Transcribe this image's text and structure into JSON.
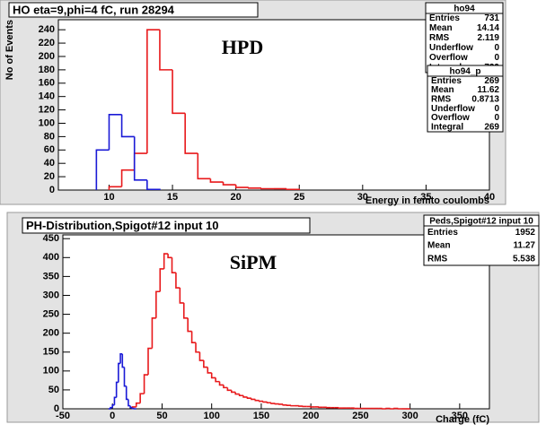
{
  "chart_data": [
    {
      "type": "histogram",
      "title": "HO eta=9,phi=4 fC, run 28294",
      "annotation": "HPD",
      "x_label": "Energy in femto coulombs",
      "y_label": "No of Events",
      "xlim": [
        6,
        40
      ],
      "ylim": [
        0,
        255
      ],
      "xticks": [
        10,
        15,
        20,
        25,
        30,
        35,
        40
      ],
      "yticks": [
        0,
        20,
        40,
        60,
        80,
        100,
        120,
        140,
        160,
        180,
        200,
        220,
        240
      ],
      "series": [
        {
          "color": "#e8191b",
          "bins": [
            10,
            11,
            12,
            13,
            14,
            15,
            16,
            17,
            18,
            19,
            20,
            21,
            22,
            23,
            24,
            25
          ],
          "values": [
            5,
            30,
            55,
            240,
            180,
            115,
            55,
            17,
            12,
            8,
            4,
            3,
            2,
            2,
            1
          ]
        },
        {
          "color": "#1a1ad6",
          "bins": [
            9,
            10,
            11,
            12,
            13,
            14
          ],
          "values": [
            60,
            113,
            80,
            15,
            1
          ]
        }
      ],
      "stats": [
        {
          "title": "ho94",
          "rows": [
            {
              "label": "Entries",
              "value": 731
            },
            {
              "label": "Mean",
              "value": 14.14
            },
            {
              "label": "RMS",
              "value": 2.119
            },
            {
              "label": "Underflow",
              "value": 0
            },
            {
              "label": "Overflow",
              "value": 0
            },
            {
              "label": "Integral",
              "value": 729
            }
          ]
        },
        {
          "title": "ho94_p",
          "rows": [
            {
              "label": "Entries",
              "value": 269
            },
            {
              "label": "Mean",
              "value": 11.62
            },
            {
              "label": "RMS",
              "value": 0.8713
            },
            {
              "label": "Underflow",
              "value": 0
            },
            {
              "label": "Overflow",
              "value": 0
            },
            {
              "label": "Integral",
              "value": 269
            }
          ]
        }
      ]
    },
    {
      "type": "histogram",
      "title": "PH-Distribution,Spigot#12 input 10",
      "annotation": "SiPM",
      "x_label": "Charge (fC)",
      "xlim": [
        -50,
        380
      ],
      "ylim": [
        0,
        460
      ],
      "xticks": [
        -50,
        0,
        50,
        100,
        150,
        200,
        250,
        300,
        350
      ],
      "yticks": [
        0,
        50,
        100,
        150,
        200,
        250,
        300,
        350,
        400,
        450
      ],
      "series": [
        {
          "color": "#e8191b",
          "bins": [
            20,
            24,
            28,
            32,
            36,
            40,
            44,
            48,
            52,
            56,
            60,
            64,
            68,
            72,
            76,
            80,
            84,
            88,
            92,
            96,
            100,
            104,
            108,
            112,
            116,
            120,
            124,
            128,
            132,
            136,
            140,
            144,
            148,
            152,
            156,
            160,
            164,
            168,
            172,
            176,
            180,
            184,
            188,
            192,
            196,
            200,
            204,
            208,
            212,
            216,
            220,
            224,
            228,
            232,
            236,
            240,
            244,
            248,
            252,
            256,
            260,
            264,
            268,
            272,
            276,
            280,
            284,
            288,
            292,
            296,
            300
          ],
          "values": [
            5,
            15,
            40,
            90,
            160,
            240,
            310,
            370,
            410,
            400,
            360,
            320,
            280,
            240,
            205,
            175,
            150,
            128,
            110,
            95,
            82,
            72,
            63,
            56,
            49,
            44,
            39,
            35,
            31,
            28,
            25,
            22,
            20,
            18,
            16,
            14,
            13,
            12,
            10,
            9,
            8,
            8,
            7,
            6,
            6,
            5,
            5,
            4,
            4,
            3,
            3,
            3,
            2,
            2,
            2,
            2,
            1,
            1,
            1,
            1,
            1,
            1,
            1,
            0,
            1,
            0,
            1,
            0,
            0,
            0
          ]
        },
        {
          "color": "#1a1ad6",
          "bins": [
            -4,
            -2,
            0,
            2,
            4,
            6,
            8,
            10,
            12,
            14,
            16,
            18,
            20,
            22,
            24
          ],
          "values": [
            0,
            3,
            10,
            30,
            70,
            120,
            145,
            110,
            60,
            25,
            8,
            3,
            1,
            0
          ]
        }
      ],
      "stats": [
        {
          "title": "Peds,Spigot#12 input 10",
          "rows": [
            {
              "label": "Entries",
              "value": 1952
            },
            {
              "label": "Mean",
              "value": 11.27
            },
            {
              "label": "RMS",
              "value": 5.538
            }
          ]
        }
      ]
    }
  ]
}
